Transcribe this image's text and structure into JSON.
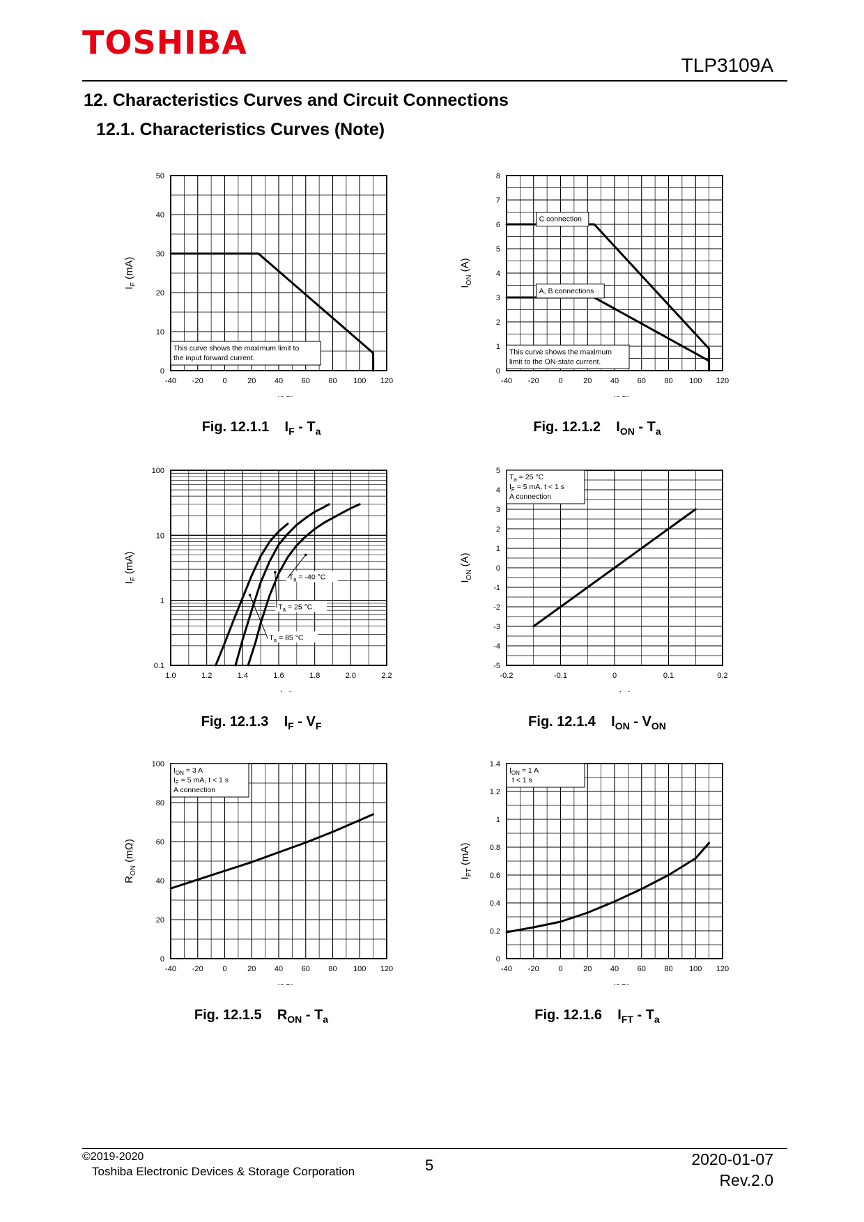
{
  "header": {
    "brand": "TOSHIBA",
    "part_number": "TLP3109A"
  },
  "section_title": "12. Characteristics Curves and Circuit Connections",
  "subsection_title": "12.1. Characteristics Curves (Note)",
  "footer": {
    "copyright": "©2019-2020",
    "company": "Toshiba Electronic Devices & Storage Corporation",
    "page": "5",
    "date": "2020-01-07",
    "revision": "Rev.2.0"
  },
  "chart_data": [
    {
      "id": "fig1",
      "type": "line",
      "caption": {
        "fig": "Fig. 12.1.1",
        "a": "I",
        "as": "F",
        "b": "T",
        "bs": "a"
      },
      "xlabel": {
        "main": "T",
        "sub": "a",
        "unit": "(℃)"
      },
      "ylabel": {
        "main": "I",
        "sub": "F",
        "unit": "(mA)"
      },
      "xlim": [
        -40,
        120
      ],
      "ylim": [
        0,
        50
      ],
      "xticks": [
        -40,
        -20,
        0,
        20,
        40,
        60,
        80,
        100,
        120
      ],
      "yticks": [
        0,
        10,
        20,
        30,
        40,
        50
      ],
      "series": [
        {
          "x": [
            -40,
            25,
            110,
            110
          ],
          "y": [
            30,
            30,
            4.5,
            0
          ]
        }
      ],
      "annotations": [
        {
          "lines": [
            "This curve shows the maximum limit to",
            "the input forward current."
          ],
          "x": -40,
          "y": 7.5
        }
      ]
    },
    {
      "id": "fig2",
      "type": "line",
      "caption": {
        "fig": "Fig. 12.1.2",
        "a": "I",
        "as": "ON",
        "b": "T",
        "bs": "a"
      },
      "xlabel": {
        "main": "T",
        "sub": "a",
        "unit": "(℃)"
      },
      "ylabel": {
        "main": "I",
        "sub": "ON",
        "unit": "(A)"
      },
      "xlim": [
        -40,
        120
      ],
      "ylim": [
        0,
        8
      ],
      "xticks": [
        -40,
        -20,
        0,
        20,
        40,
        60,
        80,
        100,
        120
      ],
      "yticks": [
        0,
        1,
        2,
        3,
        4,
        5,
        6,
        7,
        8
      ],
      "series": [
        {
          "name": "C connection",
          "x": [
            -40,
            25,
            110,
            110
          ],
          "y": [
            6,
            6,
            0.9,
            0
          ]
        },
        {
          "name": "A, B connections",
          "x": [
            -40,
            25,
            110
          ],
          "y": [
            3,
            3,
            0.4
          ]
        }
      ],
      "annotations": [
        {
          "lines": [
            "C connection"
          ],
          "x": -18,
          "y": 6.5
        },
        {
          "lines": [
            "A, B connections"
          ],
          "x": -18,
          "y": 3.55
        },
        {
          "lines": [
            "This curve shows the maximum",
            "limit to the ON-state current."
          ],
          "x": -40,
          "y": 1.05
        }
      ]
    },
    {
      "id": "fig3",
      "type": "line",
      "caption": {
        "fig": "Fig. 12.1.3",
        "a": "I",
        "as": "F",
        "b": "V",
        "bs": "F"
      },
      "xlabel": {
        "main": "V",
        "sub": "F",
        "unit": "(V)"
      },
      "ylabel": {
        "main": "I",
        "sub": "F",
        "unit": "(mA)"
      },
      "xlim": [
        1.0,
        2.2
      ],
      "ylim": [
        0.1,
        100
      ],
      "yscale": "log",
      "xticks": [
        1.0,
        1.2,
        1.4,
        1.6,
        1.8,
        2.0,
        2.2
      ],
      "xtick_labels": [
        "1.0",
        "1.2",
        "1.4",
        "1.6",
        "1.8",
        "2.0",
        "2.2"
      ],
      "yticks": [
        0.1,
        1,
        10,
        100
      ],
      "series": [
        {
          "name": "Ta = 85 °C",
          "x": [
            1.25,
            1.3,
            1.35,
            1.4,
            1.45,
            1.5,
            1.55,
            1.6,
            1.65
          ],
          "y": [
            0.1,
            0.22,
            0.5,
            1.1,
            2.4,
            4.8,
            8.0,
            11.5,
            15
          ]
        },
        {
          "name": "Ta = 25 °C",
          "x": [
            1.36,
            1.4,
            1.45,
            1.5,
            1.55,
            1.6,
            1.65,
            1.7,
            1.75,
            1.8,
            1.85,
            1.88
          ],
          "y": [
            0.1,
            0.25,
            0.7,
            1.9,
            4.0,
            7.2,
            10.5,
            14.5,
            18.5,
            23,
            27,
            30
          ]
        },
        {
          "name": "Ta = -40 °C",
          "x": [
            1.43,
            1.47,
            1.5,
            1.55,
            1.6,
            1.65,
            1.7,
            1.75,
            1.8,
            1.85,
            1.9,
            1.95,
            2.0,
            2.05
          ],
          "y": [
            0.1,
            0.22,
            0.45,
            1.2,
            2.6,
            4.6,
            7.0,
            9.6,
            12.5,
            15.5,
            18.5,
            22,
            26,
            30
          ]
        }
      ],
      "annotations": [
        {
          "text_main": "T",
          "text_sub": "a",
          "text_rest": " = -40 °C",
          "x": 1.92,
          "y": 2.2
        },
        {
          "text_main": "T",
          "text_sub": "a",
          "text_rest": " = 25 °C",
          "x": 1.86,
          "y": 0.77
        },
        {
          "text_main": "T",
          "text_sub": "a",
          "text_rest": " = 85 °C",
          "x": 1.81,
          "y": 0.26
        }
      ]
    },
    {
      "id": "fig4",
      "type": "line",
      "caption": {
        "fig": "Fig. 12.1.4",
        "a": "I",
        "as": "ON",
        "b": "V",
        "bs": "ON"
      },
      "xlabel": {
        "main": "V",
        "sub": "ON",
        "unit": "(V)"
      },
      "ylabel": {
        "main": "I",
        "sub": "ON",
        "unit": "(A)"
      },
      "xlim": [
        -0.2,
        0.2
      ],
      "ylim": [
        -5,
        5
      ],
      "xticks": [
        -0.2,
        -0.1,
        0,
        0.1,
        0.2
      ],
      "yticks": [
        -5,
        -4,
        -3,
        -2,
        -1,
        0,
        1,
        2,
        3,
        4,
        5
      ],
      "series": [
        {
          "x": [
            -0.15,
            0.15
          ],
          "y": [
            -3,
            3
          ]
        }
      ],
      "annotations": [
        {
          "line1_main": "T",
          "line1_sub": "a",
          "line1_rest": " = 25 °C",
          "line2_main": "I",
          "line2_sub": "F",
          "line2_rest": " = 5 mA, t < 1 s",
          "line3": "A connection",
          "x": -0.2,
          "y": 5
        }
      ]
    },
    {
      "id": "fig5",
      "type": "line",
      "caption": {
        "fig": "Fig. 12.1.5",
        "a": "R",
        "as": "ON",
        "b": "T",
        "bs": "a"
      },
      "xlabel": {
        "main": "T",
        "sub": "a",
        "unit": "(℃)"
      },
      "ylabel": {
        "main": "R",
        "sub": "ON",
        "unit": "(mΩ)"
      },
      "xlim": [
        -40,
        120
      ],
      "ylim": [
        0,
        100
      ],
      "xticks": [
        -40,
        -20,
        0,
        20,
        40,
        60,
        80,
        100,
        120
      ],
      "yticks": [
        0,
        20,
        40,
        60,
        80,
        100
      ],
      "series": [
        {
          "x": [
            -40,
            -20,
            0,
            20,
            40,
            60,
            80,
            100,
            110
          ],
          "y": [
            36,
            40.5,
            45,
            49.5,
            54.5,
            59.5,
            65,
            71,
            74
          ]
        }
      ],
      "annotations": [
        {
          "line1_main": "I",
          "line1_sub": "ON",
          "line1_rest": " = 3 A",
          "line2_main": "I",
          "line2_sub": "F",
          "line2_rest": " = 5 mA, t < 1 s",
          "line3": "A connection",
          "x": -40,
          "y": 100
        }
      ]
    },
    {
      "id": "fig6",
      "type": "line",
      "caption": {
        "fig": "Fig. 12.1.6",
        "a": "I",
        "as": "FT",
        "b": "T",
        "bs": "a"
      },
      "xlabel": {
        "main": "T",
        "sub": "a",
        "unit": "(℃)"
      },
      "ylabel": {
        "main": "I",
        "sub": "FT",
        "unit": "(mA)"
      },
      "xlim": [
        -40,
        120
      ],
      "ylim": [
        0,
        1.4
      ],
      "xticks": [
        -40,
        -20,
        0,
        20,
        40,
        60,
        80,
        100,
        120
      ],
      "yticks": [
        0,
        0.2,
        0.4,
        0.6,
        0.8,
        1,
        1.2,
        1.4
      ],
      "series": [
        {
          "x": [
            -40,
            -20,
            0,
            20,
            40,
            60,
            80,
            100,
            110
          ],
          "y": [
            0.19,
            0.225,
            0.265,
            0.33,
            0.41,
            0.5,
            0.6,
            0.72,
            0.83
          ]
        }
      ],
      "annotations": [
        {
          "line1_main": "I",
          "line1_sub": "ON",
          "line1_rest": " = 1 A",
          "line2": "t < 1 s",
          "x": -40,
          "y": 1.4
        }
      ]
    }
  ]
}
